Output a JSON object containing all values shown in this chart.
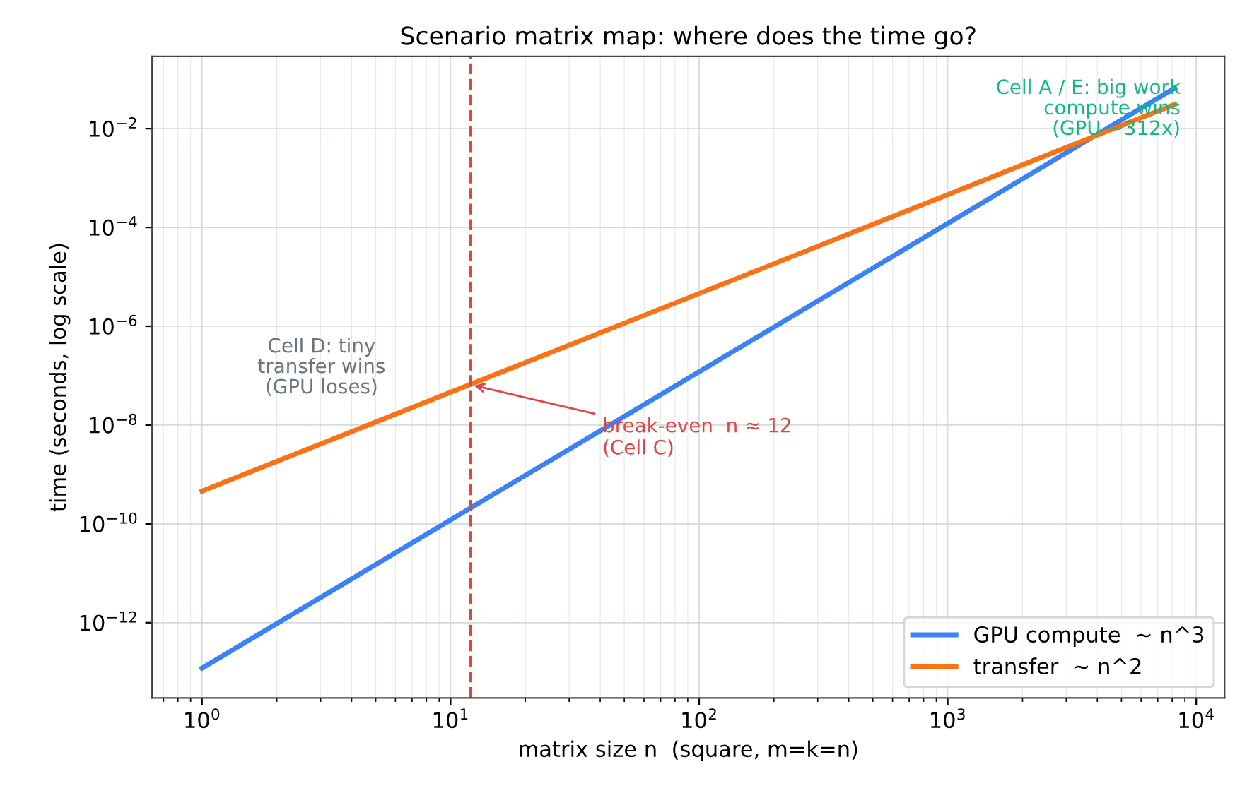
{
  "chart_data": {
    "type": "line",
    "title": "Scenario matrix map: where does the time go?",
    "xlabel": "matrix size n  (square, m=k=n)",
    "ylabel": "time (seconds, log scale)",
    "log": "xy",
    "xlim": [
      0.63,
      13000
    ],
    "ylim": [
      3e-14,
      0.29
    ],
    "xticks": [
      {
        "value": 1,
        "label": "10$^{0}$"
      },
      {
        "value": 10,
        "label": "10$^{1}$"
      },
      {
        "value": 100,
        "label": "10$^{2}$"
      },
      {
        "value": 1000,
        "label": "10$^{3}$"
      },
      {
        "value": 10000,
        "label": "10$^{4}$"
      }
    ],
    "yticks": [
      {
        "value": 1e-12,
        "label": "10$^{−12}$"
      },
      {
        "value": 1e-10,
        "label": "10$^{−10}$"
      },
      {
        "value": 1e-08,
        "label": "10$^{−8}$"
      },
      {
        "value": 1e-06,
        "label": "10$^{−6}$"
      },
      {
        "value": 0.0001,
        "label": "10$^{−4}$"
      },
      {
        "value": 0.01,
        "label": "10$^{−2}$"
      }
    ],
    "grid": true,
    "legend": "bottom right",
    "series": [
      {
        "name": "GPU compute  ~ n^3",
        "color": "#3b82f6",
        "x": [
          1,
          10,
          100,
          1000,
          8192
        ],
        "values": [
          1.2e-13,
          1.2e-10,
          1.2e-07,
          0.00012,
          0.066
        ]
      },
      {
        "name": "transfer  ~ n^2",
        "color": "#f97316",
        "x": [
          1,
          10,
          100,
          1000,
          8192
        ],
        "values": [
          4.6e-10,
          4.6e-08,
          4.6e-06,
          0.00046,
          0.031
        ]
      }
    ],
    "ref_lines": [
      {
        "axis": "x",
        "value": 12,
        "color": "#e04545",
        "line_style": "dashed"
      }
    ],
    "annotations": [
      "Cell D: tiny\ntransfer wins\n(GPU loses)",
      "Cell A / E: big work\ncompute wins\n(GPU ~312x)",
      {
        "text": "break-even  n ≈ 12\n(Cell C)",
        "x": 12,
        "y": 6.6e-08
      }
    ]
  }
}
